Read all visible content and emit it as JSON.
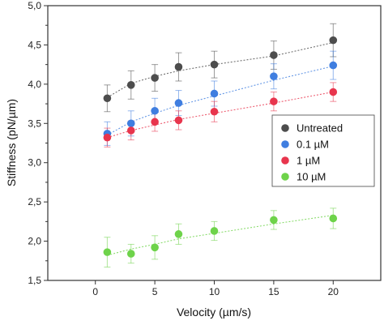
{
  "chart_data": {
    "type": "scatter",
    "xlabel": "Velocity (µm/s)",
    "ylabel": "Stiffness (pN/µm)",
    "xlim": [
      -4,
      24
    ],
    "ylim": [
      1.5,
      5.0
    ],
    "xticks": [
      0,
      5,
      10,
      15,
      20
    ],
    "xtick_labels": [
      "0",
      "5",
      "10",
      "15",
      "20"
    ],
    "yticks": [
      1.5,
      2.0,
      2.5,
      3.0,
      3.5,
      4.0,
      4.5,
      5.0
    ],
    "ytick_labels": [
      "1,5",
      "2,0",
      "2,5",
      "3,0",
      "3,5",
      "4,0",
      "4,5",
      "5,0"
    ],
    "grid": false,
    "legend_position": "right",
    "fit_lines": "dotted power-law fit per series",
    "x": [
      1,
      3,
      5,
      7,
      10,
      15,
      20
    ],
    "series": [
      {
        "name": "Untreated",
        "color": "#4d4d4d",
        "values": [
          3.82,
          3.99,
          4.08,
          4.22,
          4.25,
          4.37,
          4.56
        ],
        "errors": [
          0.17,
          0.18,
          0.17,
          0.18,
          0.17,
          0.18,
          0.21
        ],
        "fit": [
          3.83,
          4.01,
          4.1,
          4.17,
          4.25,
          4.36,
          4.53
        ]
      },
      {
        "name": "0.1 µM",
        "color": "#3f7ee0",
        "values": [
          3.37,
          3.5,
          3.66,
          3.76,
          3.88,
          4.1,
          4.24
        ],
        "errors": [
          0.15,
          0.16,
          0.16,
          0.16,
          0.16,
          0.16,
          0.18
        ],
        "fit": [
          3.35,
          3.52,
          3.63,
          3.73,
          3.85,
          4.05,
          4.23
        ]
      },
      {
        "name": "1 µM",
        "color": "#e8354d",
        "values": [
          3.32,
          3.41,
          3.52,
          3.54,
          3.65,
          3.78,
          3.9
        ],
        "errors": [
          0.12,
          0.12,
          0.12,
          0.12,
          0.13,
          0.12,
          0.12
        ],
        "fit": [
          3.32,
          3.41,
          3.48,
          3.55,
          3.63,
          3.76,
          3.9
        ]
      },
      {
        "name": "10 µM",
        "color": "#6ed34a",
        "values": [
          1.86,
          1.84,
          1.92,
          2.09,
          2.13,
          2.27,
          2.29
        ],
        "errors": [
          0.19,
          0.12,
          0.15,
          0.13,
          0.12,
          0.12,
          0.13
        ],
        "fit": [
          1.82,
          1.9,
          1.96,
          2.03,
          2.1,
          2.22,
          2.33
        ]
      }
    ]
  }
}
